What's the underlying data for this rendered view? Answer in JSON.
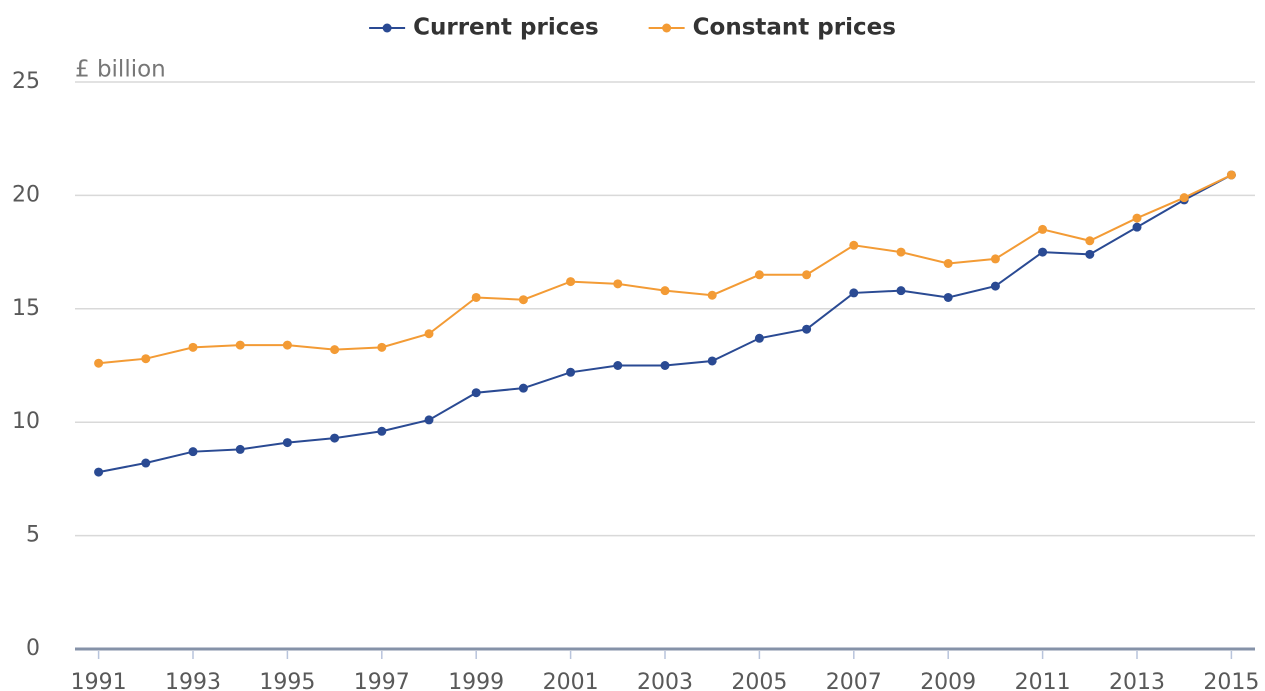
{
  "chart_data": {
    "type": "line",
    "y_axis_label": "£ billion",
    "x": [
      1991,
      1992,
      1993,
      1994,
      1995,
      1996,
      1997,
      1998,
      1999,
      2000,
      2001,
      2002,
      2003,
      2004,
      2005,
      2006,
      2007,
      2008,
      2009,
      2010,
      2011,
      2012,
      2013,
      2014,
      2015
    ],
    "series": [
      {
        "name": "Current prices",
        "color": "#2a4a93",
        "values": [
          7.8,
          8.2,
          8.7,
          8.8,
          9.1,
          9.3,
          9.6,
          10.1,
          11.3,
          11.5,
          12.2,
          12.5,
          12.5,
          12.7,
          13.7,
          14.1,
          15.7,
          15.8,
          15.5,
          16.0,
          17.5,
          17.4,
          18.6,
          19.8,
          20.9
        ]
      },
      {
        "name": "Constant prices",
        "color": "#f39b35",
        "values": [
          12.6,
          12.8,
          13.3,
          13.4,
          13.4,
          13.2,
          13.3,
          13.9,
          15.5,
          15.4,
          16.2,
          16.1,
          15.8,
          15.6,
          16.5,
          16.5,
          17.8,
          17.5,
          17.0,
          17.2,
          18.5,
          18.0,
          19.0,
          19.9,
          20.9
        ]
      }
    ],
    "xlim": [
      1990.5,
      2015.5
    ],
    "xticks": [
      1991,
      1993,
      1995,
      1997,
      1999,
      2001,
      2003,
      2005,
      2007,
      2009,
      2011,
      2013,
      2015
    ],
    "ylim": [
      0,
      25
    ],
    "yticks": [
      0,
      5,
      10,
      15,
      20,
      25
    ],
    "grid": true,
    "legend": "top"
  }
}
